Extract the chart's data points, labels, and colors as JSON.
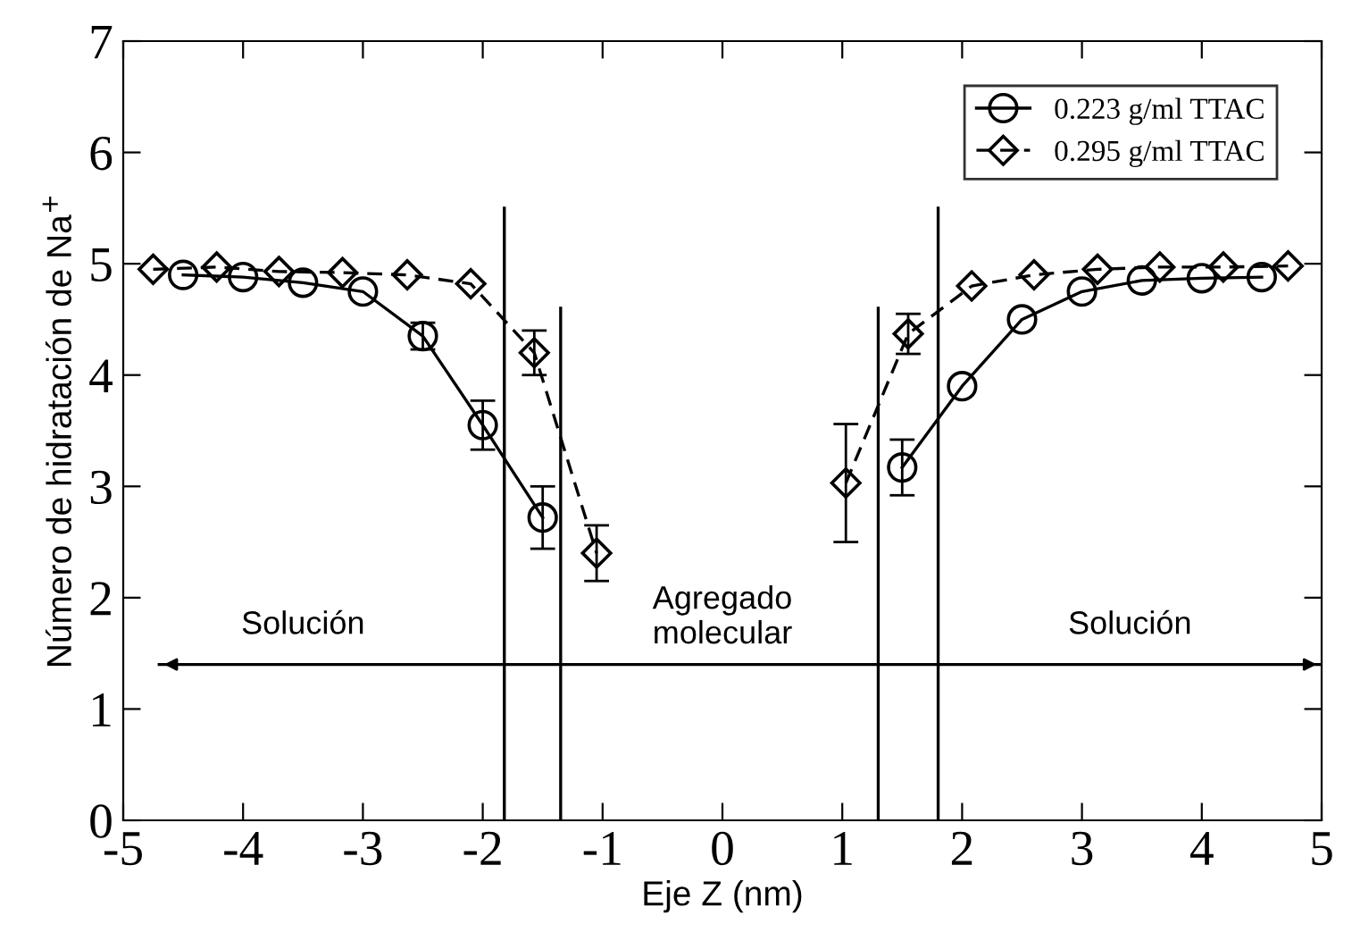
{
  "chart_data": {
    "type": "line",
    "xlabel": "Eje Z (nm)",
    "ylabel": "Número de hidratación de Na$^{+}$",
    "xlim": [
      -5,
      5
    ],
    "xticks": [
      -5,
      -4,
      -3,
      -2,
      -1,
      0,
      1,
      2,
      3,
      4,
      5
    ],
    "ylim": [
      0,
      7
    ],
    "yticks": [
      0,
      1,
      2,
      3,
      4,
      5,
      6,
      7
    ],
    "grid": false,
    "legend": "top right",
    "series": [
      {
        "name": "0.223 g/ml TTAC",
        "color": "#000000",
        "marker": "circle",
        "line_style": "solid",
        "x": [
          -4.5,
          -4,
          -3.5,
          -3,
          -2.5,
          -2,
          -1.5,
          0,
          1.5,
          2,
          2.5,
          3,
          3.5,
          4,
          4.5
        ],
        "values": [
          4.9,
          4.88,
          4.83,
          4.75,
          4.35,
          3.55,
          2.72,
          null,
          3.17,
          3.9,
          4.5,
          4.75,
          4.85,
          4.87,
          4.88
        ],
        "errors": [
          null,
          null,
          null,
          null,
          0.12,
          0.22,
          0.28,
          null,
          0.25,
          null,
          null,
          null,
          null,
          null,
          null
        ]
      },
      {
        "name": "0.295 g/ml TTAC",
        "color": "#000000",
        "marker": "diamond",
        "line_style": "dashed",
        "x": [
          -4.75,
          -4.22,
          -3.7,
          -3.17,
          -2.63,
          -2.1,
          -1.57,
          -1.05,
          0,
          1.03,
          1.55,
          2.08,
          2.6,
          3.13,
          3.65,
          4.18,
          4.72
        ],
        "values": [
          4.95,
          4.97,
          4.93,
          4.92,
          4.9,
          4.82,
          4.2,
          2.4,
          null,
          3.03,
          4.37,
          4.8,
          4.9,
          4.95,
          4.97,
          4.97,
          4.98
        ],
        "errors": [
          null,
          null,
          null,
          null,
          null,
          null,
          0.2,
          0.25,
          null,
          0.53,
          0.18,
          null,
          null,
          null,
          null,
          null,
          null
        ]
      },
      {
        "color": "#000000",
        "marker": "none",
        "line_style": "solid",
        "x": [
          -1.82,
          -1.82
        ],
        "values": [
          0,
          5.5
        ]
      },
      {
        "color": "#000000",
        "marker": "none",
        "line_style": "solid",
        "x": [
          -1.35,
          -1.35
        ],
        "values": [
          0,
          4.6
        ]
      },
      {
        "color": "#000000",
        "marker": "none",
        "line_style": "solid",
        "x": [
          1.3,
          1.3
        ],
        "values": [
          0,
          4.6
        ]
      },
      {
        "color": "#000000",
        "marker": "none",
        "line_style": "solid",
        "x": [
          1.8,
          1.8
        ],
        "values": [
          0,
          5.5
        ]
      },
      {
        "color": "#000000",
        "marker": "none",
        "line_style": "solid",
        "x": [
          -4.7,
          5
        ],
        "values": [
          1.4,
          1.4
        ]
      }
    ],
    "annotations": [
      "Solución",
      "Agregado\nmolecular",
      "Solución"
    ]
  }
}
